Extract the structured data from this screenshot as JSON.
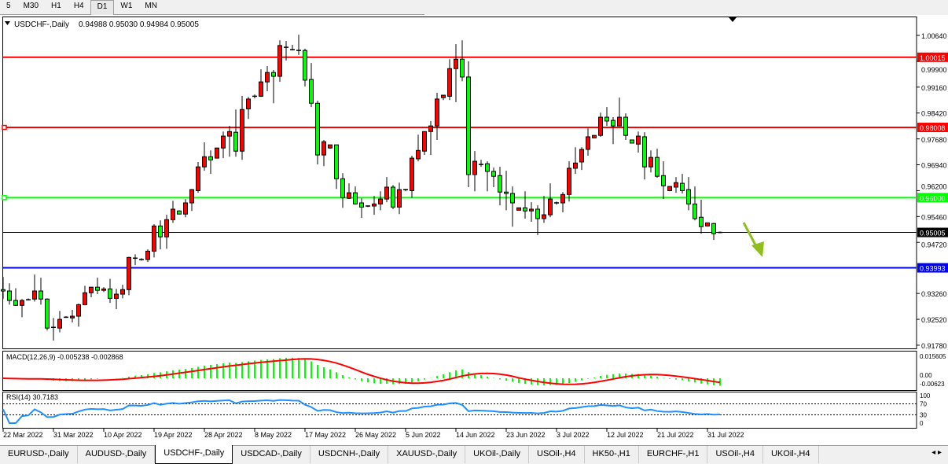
{
  "timeframes": [
    {
      "label": "5"
    },
    {
      "label": "M30"
    },
    {
      "label": "H1"
    },
    {
      "label": "H4"
    },
    {
      "label": "D1",
      "active": true
    },
    {
      "label": "W1"
    },
    {
      "label": "MN"
    }
  ],
  "chart": {
    "symbol_label": "USDCHF-,Daily",
    "ohlc_label": "0.94988 0.95030 0.94984 0.95005",
    "colors": {
      "bull": "#ff0000",
      "bear": "#00ff00",
      "outline": "#000000"
    },
    "price_ticks": [
      "1.00640",
      "0.99900",
      "0.99160",
      "0.98420",
      "0.97680",
      "0.96940",
      "0.96200",
      "0.95460",
      "0.94720",
      "0.93260",
      "0.92520",
      "0.91780"
    ],
    "levels": [
      {
        "price": 1.00015,
        "label": "1.00015",
        "color": "#ff0000",
        "text_color": "#ffffff"
      },
      {
        "price": 0.98008,
        "label": "0.98008",
        "color": "#ff0000",
        "text_color": "#ffffff",
        "marker": true
      },
      {
        "price": 0.96,
        "label": "0.96000",
        "color": "#00ff00",
        "text_color": "#ffffff",
        "marker": true
      },
      {
        "price": 0.95005,
        "label": "0.95005",
        "color": "#000000",
        "text_color": "#ffffff",
        "thin": true
      },
      {
        "price": 0.93993,
        "label": "0.93993",
        "color": "#0000ff",
        "text_color": "#ffffff"
      }
    ],
    "arrow": {
      "direction": "down",
      "color": "#8fbf1f"
    },
    "candles": [
      [
        0.9337,
        0.9373,
        0.931,
        0.9333
      ],
      [
        0.9333,
        0.9355,
        0.9294,
        0.9306
      ],
      [
        0.9306,
        0.9341,
        0.929,
        0.9292
      ],
      [
        0.9292,
        0.931,
        0.9258,
        0.9306
      ],
      [
        0.9308,
        0.9312,
        0.9306,
        0.9308
      ],
      [
        0.931,
        0.938,
        0.9303,
        0.9333
      ],
      [
        0.9333,
        0.9371,
        0.9294,
        0.931
      ],
      [
        0.931,
        0.9312,
        0.922,
        0.9227
      ],
      [
        0.9229,
        0.9256,
        0.9191,
        0.9229
      ],
      [
        0.9227,
        0.9276,
        0.9215,
        0.9252
      ],
      [
        0.9258,
        0.9261,
        0.9256,
        0.9258
      ],
      [
        0.9256,
        0.9279,
        0.9243,
        0.9261
      ],
      [
        0.9261,
        0.9297,
        0.9231,
        0.9294
      ],
      [
        0.9294,
        0.9348,
        0.9292,
        0.9328
      ],
      [
        0.9328,
        0.9344,
        0.9315,
        0.9344
      ],
      [
        0.9344,
        0.9371,
        0.9324,
        0.9335
      ],
      [
        0.9335,
        0.9344,
        0.933,
        0.9339
      ],
      [
        0.9339,
        0.9368,
        0.9299,
        0.9312
      ],
      [
        0.9312,
        0.9339,
        0.9281,
        0.9324
      ],
      [
        0.9324,
        0.9351,
        0.9312,
        0.9337
      ],
      [
        0.9337,
        0.9431,
        0.9321,
        0.9429
      ],
      [
        0.9427,
        0.9438,
        0.9407,
        0.9427
      ],
      [
        0.9423,
        0.9427,
        0.942,
        0.9423
      ],
      [
        0.9423,
        0.9452,
        0.9416,
        0.9447
      ],
      [
        0.9447,
        0.9524,
        0.9429,
        0.9519
      ],
      [
        0.9519,
        0.9535,
        0.9452,
        0.9488
      ],
      [
        0.9488,
        0.9551,
        0.9454,
        0.9537
      ],
      [
        0.9537,
        0.9591,
        0.9528,
        0.9567
      ],
      [
        0.9562,
        0.9564,
        0.9553,
        0.9553
      ],
      [
        0.9553,
        0.9596,
        0.9544,
        0.9585
      ],
      [
        0.9585,
        0.9625,
        0.9562,
        0.9623
      ],
      [
        0.962,
        0.9702,
        0.9614,
        0.9688
      ],
      [
        0.9688,
        0.9758,
        0.9677,
        0.9717
      ],
      [
        0.9717,
        0.9735,
        0.9668,
        0.9708
      ],
      [
        0.9713,
        0.9742,
        0.9713,
        0.9742
      ],
      [
        0.9742,
        0.9789,
        0.9713,
        0.9776
      ],
      [
        0.9776,
        0.9805,
        0.9717,
        0.9789
      ],
      [
        0.9787,
        0.9852,
        0.9717,
        0.9733
      ],
      [
        0.9733,
        0.9891,
        0.9708,
        0.9852
      ],
      [
        0.9854,
        0.9888,
        0.9825,
        0.9882
      ],
      [
        0.989,
        0.9895,
        0.9884,
        0.989
      ],
      [
        0.989,
        0.9967,
        0.9888,
        0.9931
      ],
      [
        0.9931,
        0.9976,
        0.9904,
        0.9958
      ],
      [
        0.9958,
        0.9965,
        0.987,
        0.9947
      ],
      [
        0.9947,
        1.005,
        0.9931,
        1.0035
      ],
      [
        1.003,
        1.0048,
        0.9992,
        1.003
      ],
      [
        1.0023,
        1.0037,
        1.0021,
        1.0023
      ],
      [
        1.0021,
        1.0066,
        1.0008,
        1.0021
      ],
      [
        1.0021,
        1.0026,
        0.9918,
        0.9936
      ],
      [
        0.9938,
        0.9985,
        0.9859,
        0.987
      ],
      [
        0.987,
        0.9877,
        0.9695,
        0.9722
      ],
      [
        0.9722,
        0.9765,
        0.969,
        0.976
      ],
      [
        0.9742,
        0.9751,
        0.974,
        0.9751
      ],
      [
        0.9751,
        0.9751,
        0.9625,
        0.9654
      ],
      [
        0.9654,
        0.967,
        0.9571,
        0.96
      ],
      [
        0.9598,
        0.9641,
        0.9596,
        0.9614
      ],
      [
        0.9614,
        0.9632,
        0.958,
        0.9582
      ],
      [
        0.9585,
        0.9598,
        0.9542,
        0.9573
      ],
      [
        0.9576,
        0.9578,
        0.9573,
        0.9576
      ],
      [
        0.9576,
        0.9605,
        0.9551,
        0.9582
      ],
      [
        0.9582,
        0.9618,
        0.9564,
        0.9596
      ],
      [
        0.9596,
        0.9659,
        0.9587,
        0.963
      ],
      [
        0.963,
        0.9636,
        0.9567,
        0.9573
      ],
      [
        0.9573,
        0.9643,
        0.9553,
        0.9623
      ],
      [
        0.9623,
        0.9625,
        0.9618,
        0.9623
      ],
      [
        0.962,
        0.972,
        0.96,
        0.9713
      ],
      [
        0.9711,
        0.978,
        0.9704,
        0.9735
      ],
      [
        0.9733,
        0.9789,
        0.9722,
        0.9789
      ],
      [
        0.9789,
        0.9819,
        0.9722,
        0.9805
      ],
      [
        0.9805,
        0.99,
        0.9765,
        0.9882
      ],
      [
        0.9886,
        0.9893,
        0.9879,
        0.9893
      ],
      [
        0.989,
        0.9996,
        0.9879,
        0.9969
      ],
      [
        0.9969,
        1.0039,
        0.9873,
        0.9996
      ],
      [
        0.9996,
        1.005,
        0.9933,
        0.9945
      ],
      [
        0.9945,
        0.999,
        0.963,
        0.9666
      ],
      [
        0.9666,
        0.9733,
        0.9618,
        0.9704
      ],
      [
        0.9695,
        0.9708,
        0.9688,
        0.9695
      ],
      [
        0.9697,
        0.9704,
        0.9618,
        0.9675
      ],
      [
        0.9675,
        0.9686,
        0.963,
        0.9661
      ],
      [
        0.9663,
        0.9688,
        0.9578,
        0.9616
      ],
      [
        0.9616,
        0.9677,
        0.9564,
        0.9612
      ],
      [
        0.9612,
        0.9632,
        0.9517,
        0.9585
      ],
      [
        0.9564,
        0.9571,
        0.9564,
        0.9571
      ],
      [
        0.9571,
        0.9618,
        0.954,
        0.9562
      ],
      [
        0.9562,
        0.9587,
        0.9531,
        0.9567
      ],
      [
        0.9567,
        0.9578,
        0.9493,
        0.954
      ],
      [
        0.954,
        0.9605,
        0.9528,
        0.9551
      ],
      [
        0.9551,
        0.9641,
        0.9544,
        0.9596
      ],
      [
        0.9585,
        0.9589,
        0.958,
        0.9585
      ],
      [
        0.9585,
        0.9616,
        0.9558,
        0.9609
      ],
      [
        0.9609,
        0.9704,
        0.9589,
        0.9684
      ],
      [
        0.9684,
        0.9744,
        0.9668,
        0.9699
      ],
      [
        0.9702,
        0.9744,
        0.9679,
        0.9738
      ],
      [
        0.9738,
        0.9798,
        0.972,
        0.9774
      ],
      [
        0.9771,
        0.9778,
        0.9771,
        0.9778
      ],
      [
        0.9778,
        0.9843,
        0.9774,
        0.983
      ],
      [
        0.983,
        0.9859,
        0.9805,
        0.9819
      ],
      [
        0.9821,
        0.983,
        0.9753,
        0.9805
      ],
      [
        0.9805,
        0.9886,
        0.9805,
        0.983
      ],
      [
        0.983,
        0.9841,
        0.9765,
        0.9778
      ],
      [
        0.9765,
        0.9765,
        0.9756,
        0.9756
      ],
      [
        0.9753,
        0.9789,
        0.9729,
        0.9776
      ],
      [
        0.9774,
        0.9787,
        0.9652,
        0.9688
      ],
      [
        0.9688,
        0.9735,
        0.9672,
        0.9715
      ],
      [
        0.9715,
        0.974,
        0.9657,
        0.9661
      ],
      [
        0.9663,
        0.9704,
        0.9596,
        0.9634
      ],
      [
        0.962,
        0.9632,
        0.9618,
        0.9632
      ],
      [
        0.963,
        0.9659,
        0.9614,
        0.9643
      ],
      [
        0.9641,
        0.9668,
        0.9612,
        0.962
      ],
      [
        0.9623,
        0.9659,
        0.9564,
        0.9582
      ],
      [
        0.9582,
        0.9632,
        0.9535,
        0.954
      ],
      [
        0.9544,
        0.9594,
        0.9497,
        0.9517
      ],
      [
        0.9519,
        0.9528,
        0.9517,
        0.9528
      ],
      [
        0.9526,
        0.9528,
        0.9479,
        0.9497
      ],
      [
        0.94988,
        0.9503,
        0.94984,
        0.95005
      ]
    ]
  },
  "macd": {
    "label": "MACD(12,26,9) -0.005238 -0.002868",
    "ticks": [
      "0.015605",
      "0.00",
      "-0.00623"
    ],
    "hist_color": "#00ff00",
    "signal_color": "#ff0000"
  },
  "rsi": {
    "label": "RSI(14) 30.7183",
    "ticks": [
      "100",
      "70",
      "30",
      "0"
    ],
    "levels": [
      70,
      30
    ],
    "line_color": "#1e90ff"
  },
  "dates": [
    {
      "i": 0,
      "label": "22 Mar 2022"
    },
    {
      "i": 8,
      "label": "31 Mar 2022"
    },
    {
      "i": 16,
      "label": "10 Apr 2022"
    },
    {
      "i": 24,
      "label": "19 Apr 2022"
    },
    {
      "i": 32,
      "label": "28 Apr 2022"
    },
    {
      "i": 40,
      "label": "8 May 2022"
    },
    {
      "i": 48,
      "label": "17 May 2022"
    },
    {
      "i": 56,
      "label": "26 May 2022"
    },
    {
      "i": 64,
      "label": "5 Jun 2022"
    },
    {
      "i": 72,
      "label": "14 Jun 2022"
    },
    {
      "i": 80,
      "label": "23 Jun 2022"
    },
    {
      "i": 88,
      "label": "3 Jul 2022"
    },
    {
      "i": 96,
      "label": "12 Jul 2022"
    },
    {
      "i": 104,
      "label": "21 Jul 2022"
    },
    {
      "i": 112,
      "label": "31 Jul 2022"
    }
  ],
  "tabs": [
    {
      "label": "EURUSD-,Daily"
    },
    {
      "label": "AUDUSD-,Daily"
    },
    {
      "label": "USDCHF-,Daily",
      "active": true
    },
    {
      "label": "USDCAD-,Daily"
    },
    {
      "label": "USDCNH-,Daily"
    },
    {
      "label": "XAUUSD-,Daily"
    },
    {
      "label": "UKOil-,Daily"
    },
    {
      "label": "USOil-,H4"
    },
    {
      "label": "HK50-,H1"
    },
    {
      "label": "EURCHF-,H1"
    },
    {
      "label": "USOil-,H4"
    },
    {
      "label": "UKOil-,H4"
    }
  ],
  "tab_scroll": {
    "left": "◂",
    "right": "▸"
  }
}
